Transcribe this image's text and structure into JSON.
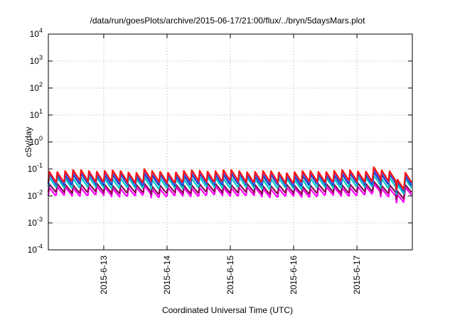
{
  "chart_data": {
    "type": "line",
    "title": "/data/run/goesPlots/archive/2015-06-17/21:00/flux/../bryn/5daysMars.plot",
    "xlabel": "Coordinated Universal Time (UTC)",
    "ylabel": "cSv/day",
    "yscale": "log",
    "ylim": [
      0.0001,
      10000
    ],
    "y_ticks": [
      {
        "base": "10",
        "exp": "-4"
      },
      {
        "base": "10",
        "exp": "-3"
      },
      {
        "base": "10",
        "exp": "-2"
      },
      {
        "base": "10",
        "exp": "-1"
      },
      {
        "base": "10",
        "exp": "0"
      },
      {
        "base": "10",
        "exp": "1"
      },
      {
        "base": "10",
        "exp": "2"
      },
      {
        "base": "10",
        "exp": "3"
      },
      {
        "base": "10",
        "exp": "4"
      }
    ],
    "xlim": [
      "2015-06-12 03:00",
      "2015-06-17 21:00"
    ],
    "x_ticks": [
      "2015-6-13",
      "2015-6-14",
      "2015-6-15",
      "2015-6-16",
      "2015-6-17"
    ],
    "grid": true,
    "cycle_hours": 3,
    "series": [
      {
        "color": "#ff00ff",
        "peak": 0.02,
        "trough": 0.01
      },
      {
        "color": "#8b0a50",
        "peak": 0.026,
        "trough": 0.013
      },
      {
        "color": "#00c8c8",
        "peak": 0.045,
        "trough": 0.02
      },
      {
        "color": "#1f3fbf",
        "peak": 0.06,
        "trough": 0.026
      },
      {
        "color": "#3a5fff",
        "peak": 0.072,
        "trough": 0.03
      },
      {
        "color": "#ff1010",
        "peak": 0.082,
        "trough": 0.034
      }
    ],
    "events": [
      {
        "time": "2015-06-13 14:00",
        "factor": 1.25
      },
      {
        "time": "2015-06-17 06:00",
        "factor": 1.35
      },
      {
        "time": "2015-06-17 15:00",
        "factor": 0.55
      }
    ]
  }
}
